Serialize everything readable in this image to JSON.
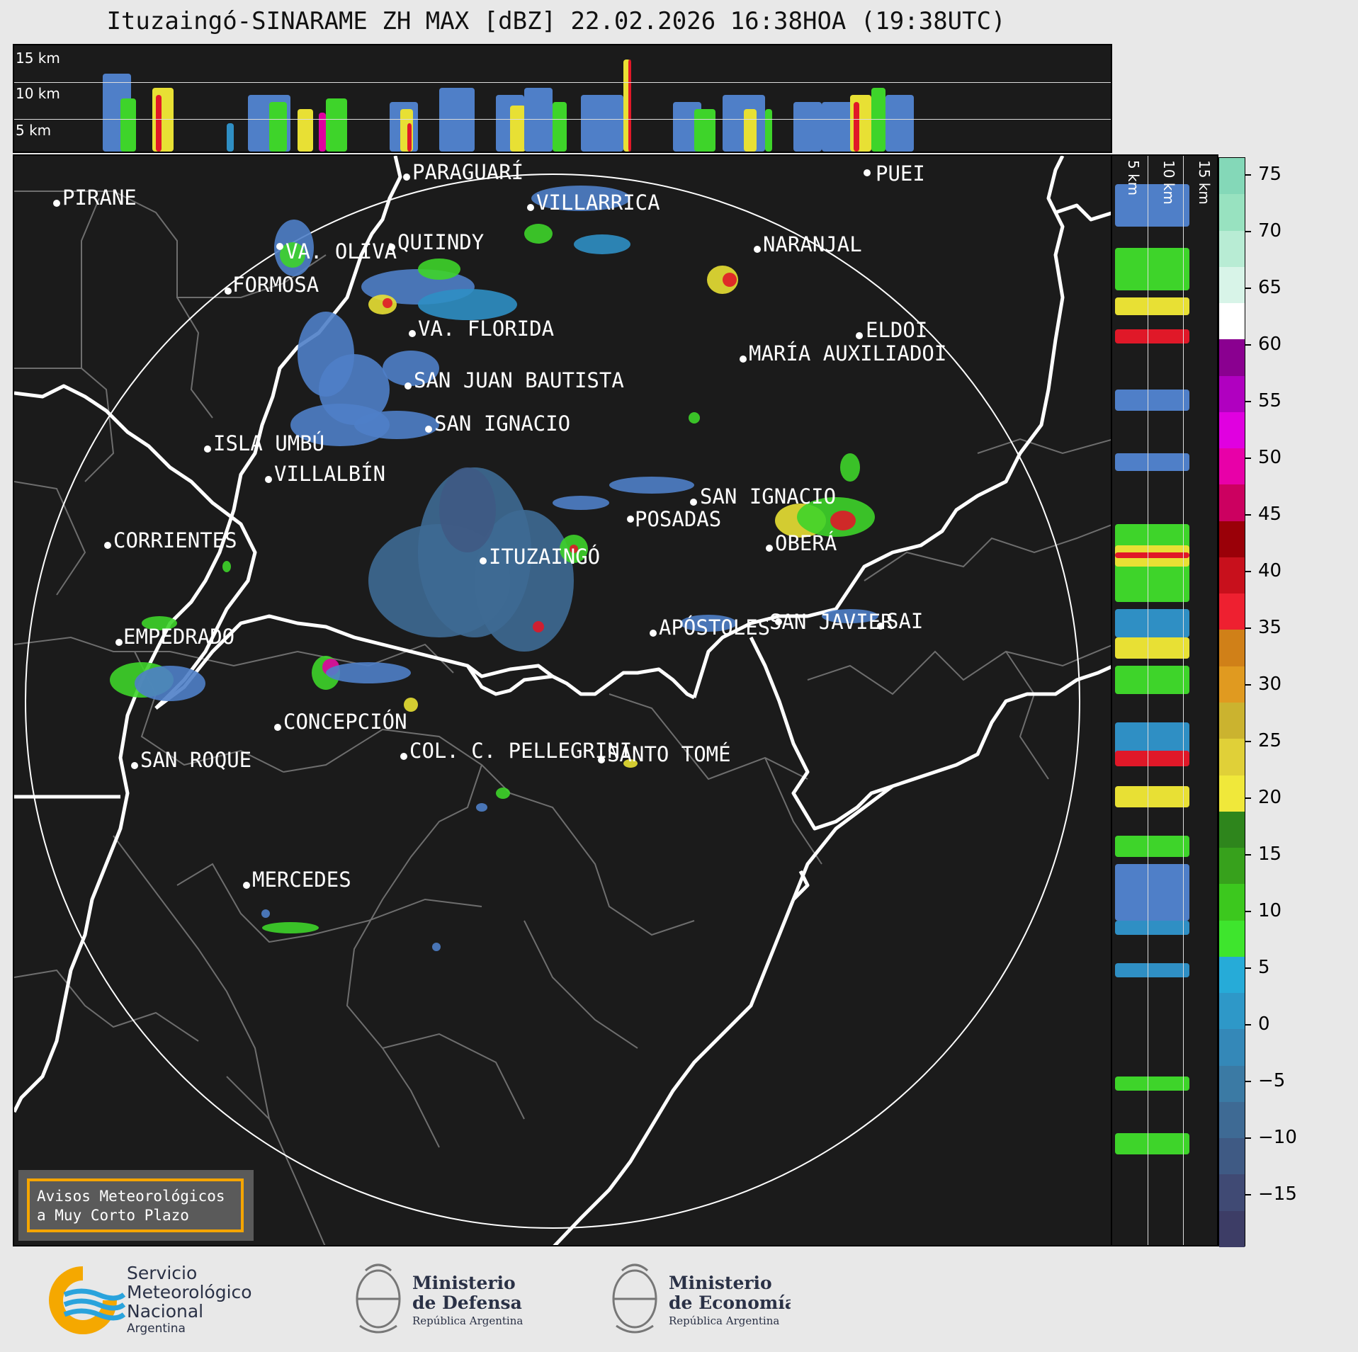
{
  "title": "Ituzaingó-SINARAME ZH MAX [dBZ] 22.02.2026 16:38HOA (19:38UTC)",
  "top_altitude_labels": [
    "15 km",
    "10 km",
    "5 km"
  ],
  "right_altitude_labels": [
    "5 km",
    "10 km",
    "15 km"
  ],
  "cities": [
    {
      "name": "PIRANE"
    },
    {
      "name": "PARAGUARÍ"
    },
    {
      "name": "VILLARRICA"
    },
    {
      "name": "QUIINDY"
    },
    {
      "name": "VA. OLIVA"
    },
    {
      "name": "FORMOSA"
    },
    {
      "name": "NARANJAL"
    },
    {
      "name": "PUEI"
    },
    {
      "name": "VA. FLORIDA"
    },
    {
      "name": "ELDOI"
    },
    {
      "name": "MARÍA AUXILIADOI"
    },
    {
      "name": "SAN JUAN BAUTISTA"
    },
    {
      "name": "SAN IGNACIO"
    },
    {
      "name": "ISLA UMBÚ"
    },
    {
      "name": "VILLALBÍN"
    },
    {
      "name": "SAN IGNACIO"
    },
    {
      "name": "POSADAS"
    },
    {
      "name": "CORRIENTES"
    },
    {
      "name": "ITUZAINGÓ"
    },
    {
      "name": "OBERÁ"
    },
    {
      "name": "EMPEDRADO"
    },
    {
      "name": "APÓSTOLES"
    },
    {
      "name": "SAN JAVIER"
    },
    {
      "name": "SAI"
    },
    {
      "name": "CONCEPCIÓN"
    },
    {
      "name": "COL. C. PELLEGRINI"
    },
    {
      "name": "SAN ROQUE"
    },
    {
      "name": "SANTO TOMÉ"
    },
    {
      "name": "MERCEDES"
    }
  ],
  "colorbar": {
    "ticks": [
      "75",
      "70",
      "65",
      "60",
      "55",
      "50",
      "45",
      "40",
      "35",
      "30",
      "25",
      "20",
      "15",
      "10",
      "5",
      "0",
      "−5",
      "−10",
      "−15"
    ],
    "colors": [
      "#3d3d66",
      "#404a74",
      "#3f5a84",
      "#3e6a94",
      "#3b7aa4",
      "#3488b8",
      "#2e98c8",
      "#26abd8",
      "#3ee52d",
      "#3cc81e",
      "#37a11c",
      "#2e851c",
      "#f0e83a",
      "#e0d038",
      "#cbb32f",
      "#e09a20",
      "#d08018",
      "#ee2030",
      "#c8101c",
      "#9a0008",
      "#cc0060",
      "#e800a8",
      "#e000e0",
      "#b000c0",
      "#8a0090",
      "#ffffff",
      "#d8f4e8",
      "#b8ecd4",
      "#98e2c0",
      "#84d8b8"
    ]
  },
  "aviso": {
    "line1": "Avisos Meteorológicos",
    "line2": "a Muy Corto Plazo"
  },
  "logos": {
    "smn": {
      "line1": "Servicio",
      "line2": "Meteorológico",
      "line3": "Nacional",
      "line4": "Argentina"
    },
    "defensa": {
      "line1": "Ministerio",
      "line2": "de Defensa",
      "line3": "República Argentina"
    },
    "economia": {
      "line1": "Ministerio",
      "line2": "de Economía",
      "line3": "República Argentina"
    }
  }
}
